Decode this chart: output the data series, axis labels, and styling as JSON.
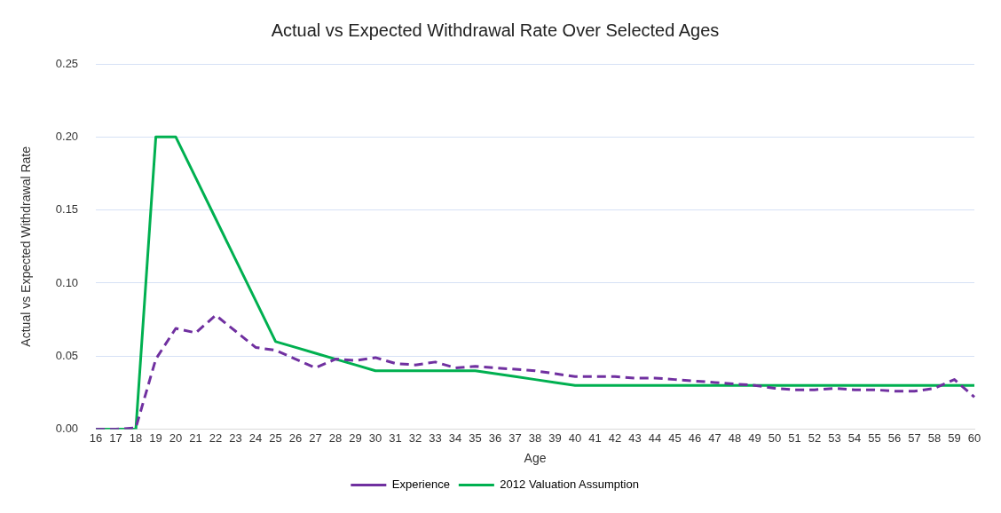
{
  "chart_data": {
    "type": "line",
    "title": "Actual vs Expected Withdrawal Rate Over Selected Ages",
    "xlabel": "Age",
    "ylabel": "Actual vs Expected Withdrawal Rate",
    "categories": [
      "16",
      "17",
      "18",
      "19",
      "20",
      "21",
      "22",
      "23",
      "24",
      "25",
      "26",
      "27",
      "28",
      "29",
      "30",
      "31",
      "32",
      "33",
      "34",
      "35",
      "36",
      "37",
      "38",
      "39",
      "40",
      "41",
      "42",
      "43",
      "44",
      "45",
      "46",
      "47",
      "48",
      "49",
      "50",
      "51",
      "52",
      "53",
      "54",
      "55",
      "56",
      "57",
      "58",
      "59",
      "60"
    ],
    "series": [
      {
        "name": "Experience",
        "color": "#7030a0",
        "line_style": "dashed",
        "values": [
          0,
          0,
          0.001,
          0.048,
          0.069,
          0.066,
          0.078,
          0.067,
          0.056,
          0.054,
          0.048,
          0.042,
          0.048,
          0.047,
          0.049,
          0.045,
          0.044,
          0.046,
          0.042,
          0.043,
          0.042,
          0.041,
          0.04,
          0.038,
          0.036,
          0.036,
          0.036,
          0.035,
          0.035,
          0.034,
          0.033,
          0.032,
          0.031,
          0.03,
          0.028,
          0.027,
          0.027,
          0.028,
          0.027,
          0.027,
          0.026,
          0.026,
          0.028,
          0.034,
          0.022
        ]
      },
      {
        "name": "2012 Valuation Assumption",
        "color": "#00b050",
        "line_style": "solid",
        "values": [
          0,
          0,
          0,
          0.2,
          0.2,
          0.172,
          0.144,
          0.116,
          0.088,
          0.06,
          0.056,
          0.052,
          0.048,
          0.044,
          0.04,
          0.04,
          0.04,
          0.04,
          0.04,
          0.04,
          0.038,
          0.036,
          0.034,
          0.032,
          0.03,
          0.03,
          0.03,
          0.03,
          0.03,
          0.03,
          0.03,
          0.03,
          0.03,
          0.03,
          0.03,
          0.03,
          0.03,
          0.03,
          0.03,
          0.03,
          0.03,
          0.03,
          0.03,
          0.03,
          0.03
        ]
      }
    ],
    "ylim": [
      0,
      0.25
    ],
    "yticks": [
      {
        "value": 0,
        "label": "0.00"
      },
      0.05,
      {
        "value": 0.1,
        "label": "0.10"
      },
      0.15,
      {
        "value": 0.2,
        "label": "0.20"
      },
      0.25
    ],
    "grid": "y",
    "legend": "bottom",
    "marker": "none"
  }
}
